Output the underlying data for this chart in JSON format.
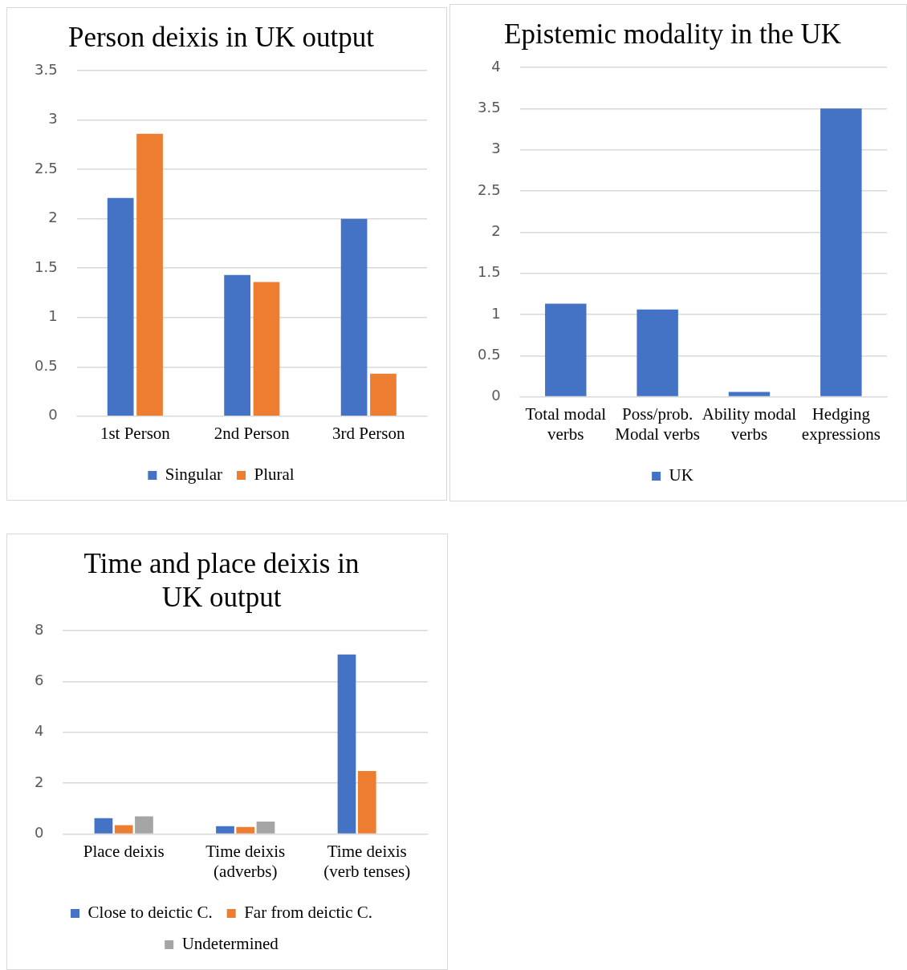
{
  "chart_data": [
    {
      "type": "bar",
      "title": "Person deixis in UK output",
      "categories": [
        "1st Person",
        "2nd Person",
        "3rd Person"
      ],
      "series": [
        {
          "name": "Singular",
          "color": "#4472c4",
          "values": [
            2.21,
            1.43,
            2.0
          ]
        },
        {
          "name": "Plural",
          "color": "#ed7d31",
          "values": [
            2.86,
            1.36,
            0.43
          ]
        }
      ],
      "ylim": [
        0,
        3.5
      ],
      "yticks": [
        0,
        0.5,
        1,
        1.5,
        2,
        2.5,
        3,
        3.5
      ],
      "grid": "y",
      "legend": "bottom"
    },
    {
      "type": "bar",
      "title": "Epistemic modality in the UK",
      "categories": [
        "Total modal verbs",
        "Poss/prob. Modal verbs",
        "Ability modal verbs",
        "Hedging expressions"
      ],
      "series": [
        {
          "name": "UK",
          "color": "#4472c4",
          "values": [
            1.13,
            1.06,
            0.06,
            3.5
          ]
        }
      ],
      "ylim": [
        0,
        4
      ],
      "yticks": [
        0,
        0.5,
        1,
        1.5,
        2,
        2.5,
        3,
        3.5,
        4
      ],
      "grid": "y",
      "legend": "bottom"
    },
    {
      "type": "bar",
      "title": "Time and place deixis in UK output",
      "categories": [
        "Place deixis",
        "Time deixis (adverbs)",
        "Time deixis (verb tenses)"
      ],
      "series": [
        {
          "name": "Close to deictic C.",
          "color": "#4472c4",
          "values": [
            0.63,
            0.31,
            7.06
          ]
        },
        {
          "name": "Far from deictic C.",
          "color": "#ed7d31",
          "values": [
            0.35,
            0.28,
            2.48
          ]
        },
        {
          "name": "Undetermined",
          "color": "#a5a5a5",
          "values": [
            0.7,
            0.49,
            0
          ]
        }
      ],
      "ylim": [
        0,
        8
      ],
      "yticks": [
        0,
        2,
        4,
        6,
        8
      ],
      "grid": "y",
      "legend": "bottom"
    }
  ]
}
